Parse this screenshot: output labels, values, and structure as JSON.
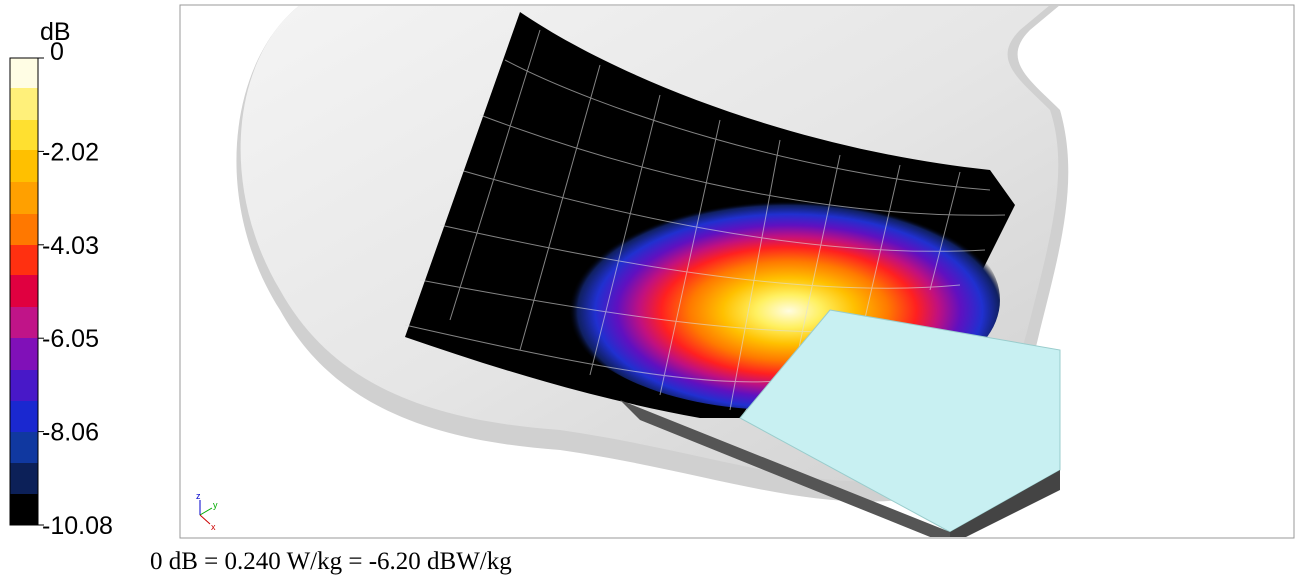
{
  "colorbar": {
    "unit": "dB",
    "ticks": [
      "0",
      "-2.02",
      "-4.03",
      "-6.05",
      "-8.06",
      "-10.08"
    ]
  },
  "axes_triad": {
    "z": "z",
    "y": "y",
    "x": "x"
  },
  "caption": "0 dB = 0.240 W/kg = -6.20 dBW/kg"
}
